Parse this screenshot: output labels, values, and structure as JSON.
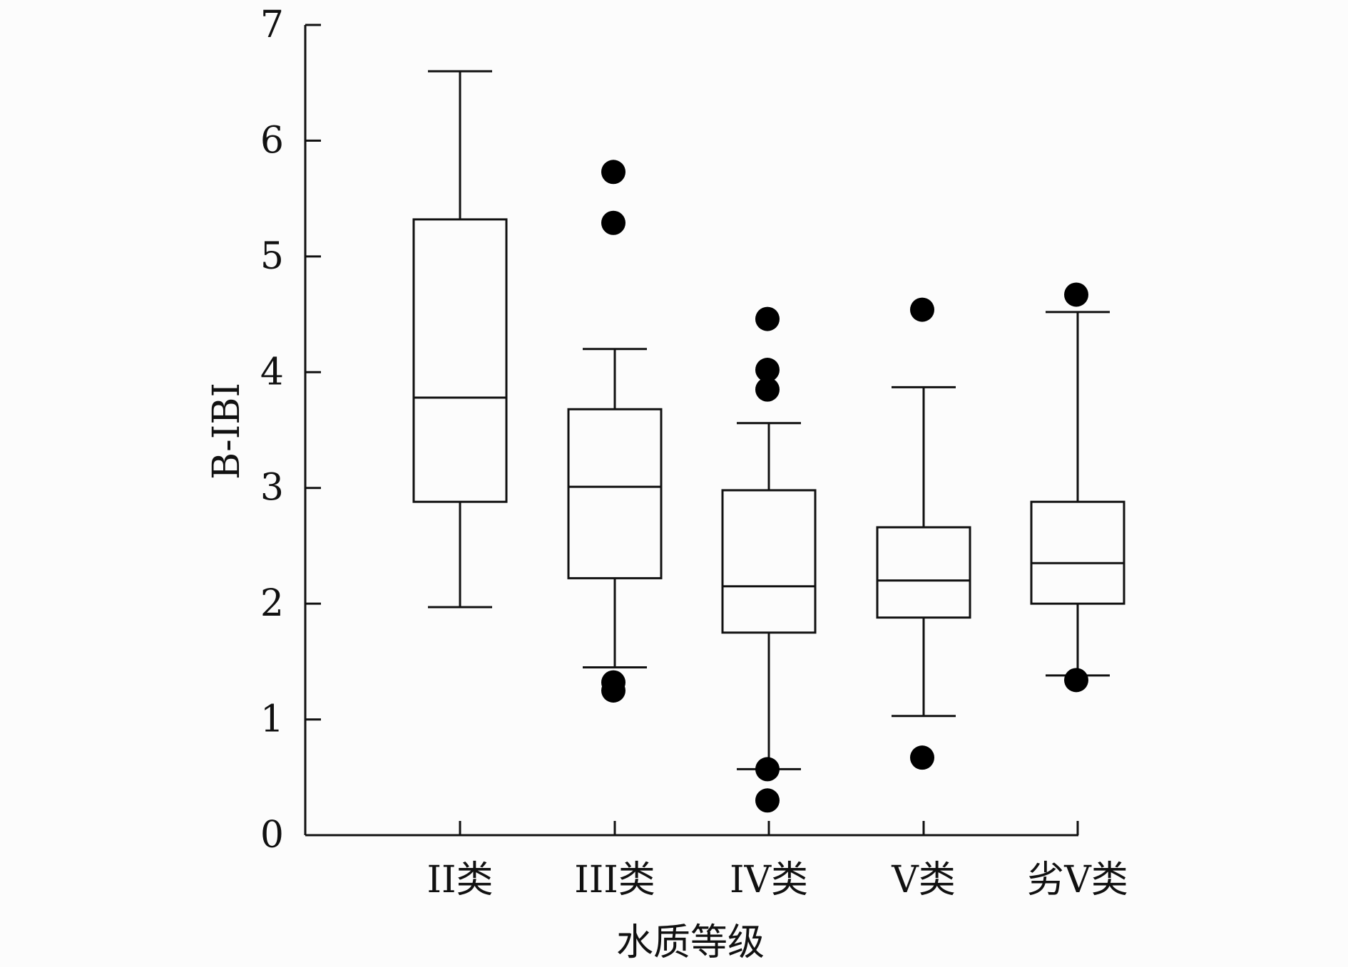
{
  "chart_data": {
    "type": "box",
    "title": "",
    "xlabel": "水质等级",
    "ylabel": "B-IBI",
    "ylim": [
      0,
      7
    ],
    "yticks": [
      "0",
      "1",
      "2",
      "3",
      "4",
      "5",
      "6",
      "7"
    ],
    "categories": [
      "II类",
      "III类",
      "IV类",
      "V类",
      "劣V类"
    ],
    "series": [
      {
        "name": "II类",
        "whisker_low": 1.97,
        "q1": 2.88,
        "median": 3.78,
        "q3": 5.32,
        "whisker_high": 6.6,
        "outliers": []
      },
      {
        "name": "III类",
        "whisker_low": 1.45,
        "q1": 2.22,
        "median": 3.01,
        "q3": 3.68,
        "whisker_high": 4.2,
        "outliers": [
          5.73,
          5.29,
          1.32,
          1.25
        ]
      },
      {
        "name": "IV类",
        "whisker_low": 0.57,
        "q1": 1.75,
        "median": 2.15,
        "q3": 2.98,
        "whisker_high": 3.56,
        "outliers": [
          4.46,
          4.02,
          3.85,
          0.57,
          0.3
        ]
      },
      {
        "name": "V类",
        "whisker_low": 1.03,
        "q1": 1.88,
        "median": 2.2,
        "q3": 2.66,
        "whisker_high": 3.87,
        "outliers": [
          4.54,
          0.67
        ]
      },
      {
        "name": "劣V类",
        "whisker_low": 1.38,
        "q1": 2.0,
        "median": 2.35,
        "q3": 2.88,
        "whisker_high": 4.52,
        "outliers": [
          4.67,
          1.34
        ]
      }
    ],
    "grid": false,
    "legend": "none"
  }
}
